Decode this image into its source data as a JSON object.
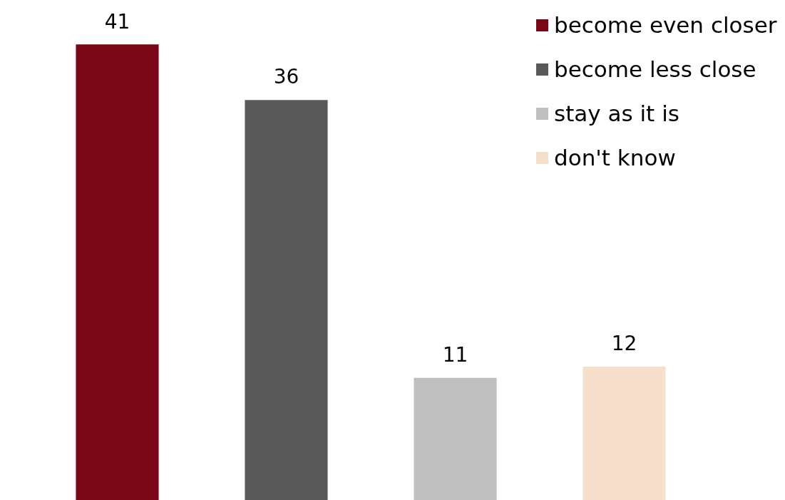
{
  "chart_data": {
    "type": "bar",
    "categories": [
      null,
      null,
      null,
      null
    ],
    "series": [
      {
        "name": "become even closer",
        "color": "#7a0819",
        "values": [
          41,
          null,
          null,
          null
        ]
      },
      {
        "name": "become less close",
        "color": "#595959",
        "values": [
          null,
          36,
          null,
          null
        ]
      },
      {
        "name": "stay as it is",
        "color": "#bfbfbf",
        "values": [
          null,
          null,
          11,
          null
        ]
      },
      {
        "name": "don't know",
        "color": "#f6e0cc",
        "values": [
          null,
          null,
          null,
          12
        ]
      }
    ],
    "stacked": true,
    "data_labels": true,
    "legend": "top right"
  }
}
